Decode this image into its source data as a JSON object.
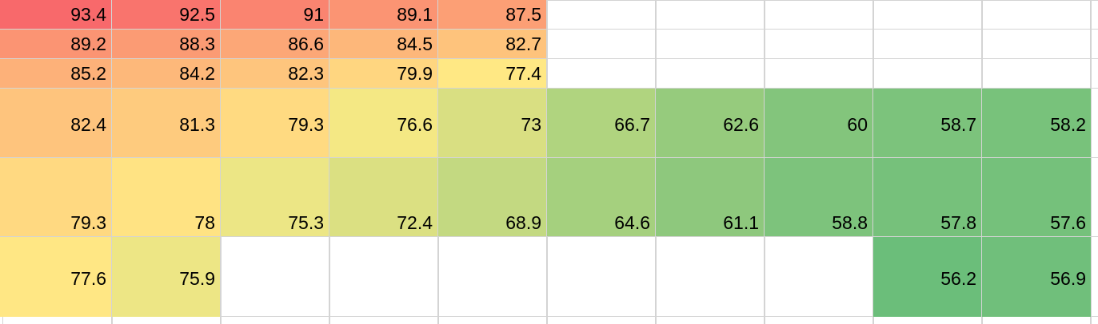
{
  "sheet": {
    "rows": [
      {
        "cells": [
          {
            "value": "93.4",
            "color": "#f8696b"
          },
          {
            "value": "92.5",
            "color": "#f9746d"
          },
          {
            "value": "91",
            "color": "#fa8470"
          },
          {
            "value": "89.1",
            "color": "#fb9473"
          },
          {
            "value": "87.5",
            "color": "#fc9f75"
          },
          {
            "value": "",
            "color": ""
          },
          {
            "value": "",
            "color": ""
          },
          {
            "value": "",
            "color": ""
          },
          {
            "value": "",
            "color": ""
          },
          {
            "value": "",
            "color": ""
          }
        ]
      },
      {
        "cells": [
          {
            "value": "89.2",
            "color": "#fb9473"
          },
          {
            "value": "88.3",
            "color": "#fb9b74"
          },
          {
            "value": "86.6",
            "color": "#fca777"
          },
          {
            "value": "84.5",
            "color": "#fdb77a"
          },
          {
            "value": "82.7",
            "color": "#fec37c"
          },
          {
            "value": "",
            "color": ""
          },
          {
            "value": "",
            "color": ""
          },
          {
            "value": "",
            "color": ""
          },
          {
            "value": "",
            "color": ""
          },
          {
            "value": "",
            "color": ""
          }
        ]
      },
      {
        "cells": [
          {
            "value": "85.2",
            "color": "#fdb179"
          },
          {
            "value": "84.2",
            "color": "#fdb87a"
          },
          {
            "value": "82.3",
            "color": "#fec57d"
          },
          {
            "value": "79.9",
            "color": "#ffd680"
          },
          {
            "value": "77.4",
            "color": "#ffe884"
          },
          {
            "value": "",
            "color": ""
          },
          {
            "value": "",
            "color": ""
          },
          {
            "value": "",
            "color": ""
          },
          {
            "value": "",
            "color": ""
          },
          {
            "value": "",
            "color": ""
          }
        ]
      },
      {
        "cells": [
          {
            "value": "82.4",
            "color": "#fec47d"
          },
          {
            "value": "81.3",
            "color": "#fecb7e"
          },
          {
            "value": "79.3",
            "color": "#ffda81"
          },
          {
            "value": "76.6",
            "color": "#f4e884"
          },
          {
            "value": "73",
            "color": "#d9df82"
          },
          {
            "value": "66.7",
            "color": "#b0d47f"
          },
          {
            "value": "62.6",
            "color": "#96cb7d"
          },
          {
            "value": "60",
            "color": "#83c57c"
          },
          {
            "value": "58.7",
            "color": "#7cc37c"
          },
          {
            "value": "58.2",
            "color": "#78c27b"
          }
        ]
      },
      {
        "cells": [
          {
            "value": "79.3",
            "color": "#ffd981"
          },
          {
            "value": "78",
            "color": "#ffe383"
          },
          {
            "value": "75.3",
            "color": "#ece685"
          },
          {
            "value": "72.4",
            "color": "#dbe082"
          },
          {
            "value": "68.9",
            "color": "#c3d981"
          },
          {
            "value": "64.6",
            "color": "#a5d07e"
          },
          {
            "value": "61.1",
            "color": "#8ec87d"
          },
          {
            "value": "58.8",
            "color": "#7dc37c"
          },
          {
            "value": "57.8",
            "color": "#76c17b"
          },
          {
            "value": "57.6",
            "color": "#75c17b"
          }
        ]
      },
      {
        "cells": [
          {
            "value": "77.6",
            "color": "#ffe784"
          },
          {
            "value": "75.9",
            "color": "#ede685"
          },
          {
            "value": "",
            "color": ""
          },
          {
            "value": "",
            "color": ""
          },
          {
            "value": "",
            "color": ""
          },
          {
            "value": "",
            "color": ""
          },
          {
            "value": "",
            "color": ""
          },
          {
            "value": "",
            "color": ""
          },
          {
            "value": "56.2",
            "color": "#6bbe7a"
          },
          {
            "value": "56.9",
            "color": "#70bf7b"
          }
        ]
      }
    ]
  }
}
